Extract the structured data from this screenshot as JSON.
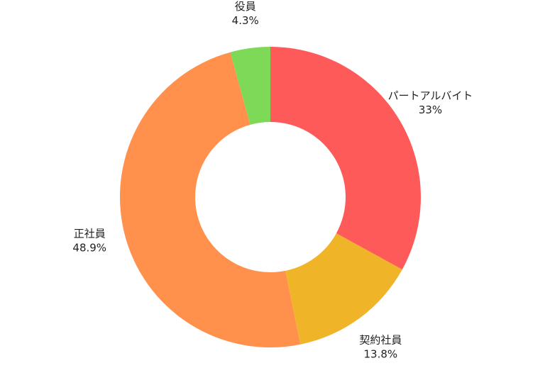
{
  "chart_data": {
    "type": "donut",
    "categories": [
      "パートアルバイト",
      "契約社員",
      "正社員",
      "役員"
    ],
    "values": [
      33,
      13.8,
      48.9,
      4.3
    ],
    "value_labels": [
      "33%",
      "13.8%",
      "48.9%",
      "4.3%"
    ],
    "colors": [
      "#ff5a5a",
      "#f0b429",
      "#ff914d",
      "#7ed957"
    ]
  }
}
